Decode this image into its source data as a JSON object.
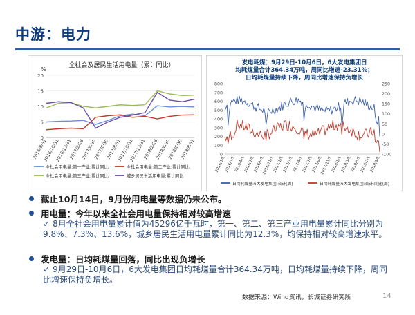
{
  "slide": {
    "title": "中游：电力",
    "page_number": "14",
    "source": "数据来源：Wind资讯，长城证券研究所"
  },
  "bullets": [
    {
      "text": "截止10月14日，9月份用电量等数据仍未公布。"
    },
    {
      "text": "用电量：今年以来全社会用电量保持相对较高增速",
      "detail": "8月全社会用电量累计值为45296亿千瓦时，第一、第二、第三产业用电量累计同比分别为9.8%、7.3%、13.6%，城乡居民生活用电量累计同比为12.3%，均保持相对较高增速水平。"
    },
    {
      "text": "发电量：日均耗煤量回落，同比出现负增长",
      "detail": "9月29日-10月6日，6大发电集团日均耗煤量合计364.34万吨，日均耗煤量持续下降，周同比增速保持负增长。"
    }
  ],
  "chart_data": [
    {
      "type": "line",
      "title": "全社会及居民生活用电量（累计同比）",
      "ylabel": "%",
      "ylim": [
        0,
        20
      ],
      "yticks": [
        "0",
        "5",
        "10",
        "15",
        "20"
      ],
      "x": [
        "2016/8/31",
        "2016/10/31",
        "2016/12/31",
        "2017/2/28",
        "2017/4/30",
        "2017/6/30",
        "2017/8/31",
        "2017/10/31",
        "2017/12/31",
        "2018/2/28",
        "2018/4/30",
        "2018/6/30",
        "2018/8/31"
      ],
      "series": [
        {
          "name": "全社会用电量:第一产业:累计同比",
          "color": "#6b8fd6",
          "values": [
            5.0,
            5.2,
            5.3,
            5.5,
            4.2,
            5.5,
            7.0,
            7.5,
            7.0,
            10.2,
            9.8,
            10.0,
            9.8
          ]
        },
        {
          "name": "全社会用电量:第二产业:累计同比",
          "color": "#c0392b",
          "values": [
            2.5,
            2.8,
            3.0,
            2.8,
            6.5,
            7.0,
            7.3,
            6.5,
            6.8,
            6.0,
            6.8,
            7.2,
            7.3
          ]
        },
        {
          "name": "全社会用电量:第三产业:累计同比",
          "color": "#9bbb59",
          "values": [
            9.5,
            11.0,
            11.2,
            10.0,
            9.5,
            10.0,
            10.5,
            10.3,
            10.5,
            15.0,
            14.0,
            13.5,
            13.6
          ]
        },
        {
          "name": "城乡居民生活用电量:累计同比",
          "color": "#6a4fa0",
          "values": [
            11.0,
            11.5,
            11.2,
            9.5,
            3.0,
            5.0,
            6.5,
            7.2,
            8.0,
            14.5,
            12.0,
            11.5,
            12.3
          ]
        }
      ]
    },
    {
      "type": "line",
      "title": "发电耗煤：9月29日-10月6日，6大发电集团日均耗煤量合计364.34万吨，周同比增速-23.31%；日均耗煤量持续下降，周同比增速保持负增长",
      "ylim_left": [
        0,
        800
      ],
      "ylim_right": [
        -100,
        250
      ],
      "yticks_left": [
        "0",
        "100",
        "200",
        "300",
        "400",
        "500",
        "600",
        "700",
        "800"
      ],
      "yticks_right": [
        "-100",
        "-50",
        "0",
        "50",
        "100",
        "150",
        "200",
        "250"
      ],
      "x_ticks": [
        "2016/1/1",
        "2016/3/1",
        "2016/5/1",
        "2016/7/1",
        "2016/9/1",
        "2016/11/1",
        "2017/1/1",
        "2017/3/1",
        "2017/5/1",
        "2017/7/1",
        "2017/9/1",
        "2017/11/1",
        "2018/1/1",
        "2018/3/1",
        "2018/5/1",
        "2018/7/1",
        "2018/9/1"
      ],
      "series": [
        {
          "name": "日均耗煤量:6大发电集团:合计(周)",
          "axis": "left",
          "color": "#3a5fa8"
        },
        {
          "name": "日均耗煤量:6大发电集团:合计:同比(周)",
          "axis": "right",
          "color": "#c0392b"
        }
      ]
    }
  ]
}
